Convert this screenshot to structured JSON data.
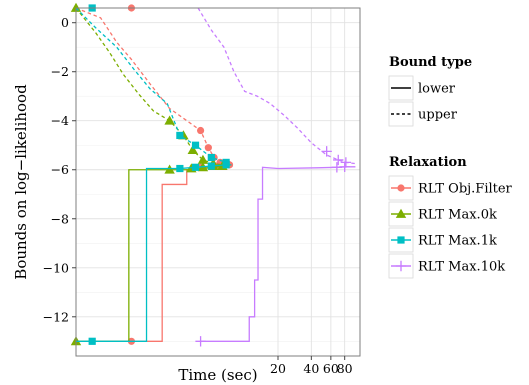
{
  "chart_data": {
    "type": "line",
    "title": "",
    "xlabel": "Time (sec)",
    "ylabel": "Bounds on log−likelihood",
    "x_scale": "log",
    "xlim": [
      0.3,
      110
    ],
    "ylim": [
      -13.6,
      0.6
    ],
    "x_ticks": [
      {
        "value": 20,
        "label": "20"
      },
      {
        "value": 40,
        "label": "40"
      },
      {
        "value": 60,
        "label": "60"
      },
      {
        "value": 80,
        "label": "80"
      }
    ],
    "y_ticks": [
      {
        "value": 0,
        "label": "0"
      },
      {
        "value": -2,
        "label": "−2"
      },
      {
        "value": -4,
        "label": "−4"
      },
      {
        "value": -6,
        "label": "−6"
      },
      {
        "value": -8,
        "label": "−8"
      },
      {
        "value": -10,
        "label": "−10"
      },
      {
        "value": -12,
        "label": "−12"
      }
    ],
    "grid": true,
    "legend_position": "right",
    "legend": {
      "bound_title": "Bound type",
      "bound_items": [
        {
          "label": "lower",
          "dash": "solid"
        },
        {
          "label": "upper",
          "dash": "dashed"
        }
      ],
      "relaxation_title": "Relaxation"
    },
    "series": [
      {
        "name": "RLT Obj.Filter",
        "color": "#F8766D",
        "shape": "circle",
        "lower": [
          [
            0.3,
            -13
          ],
          [
            1.8,
            -13
          ],
          [
            1.8,
            -6.6
          ],
          [
            3.0,
            -6.6
          ],
          [
            3.0,
            -6.0
          ],
          [
            4.0,
            -5.9
          ],
          [
            5.4,
            -5.85
          ],
          [
            6.5,
            -5.8
          ],
          [
            7.6,
            -5.8
          ]
        ],
        "lower_markers": [
          [
            0.95,
            -13
          ],
          [
            4.0,
            -5.9
          ],
          [
            5.5,
            -5.85
          ],
          [
            6.5,
            -5.8
          ],
          [
            7.3,
            -5.8
          ]
        ],
        "upper": [
          [
            0.3,
            0.6
          ],
          [
            0.5,
            0.2
          ],
          [
            0.7,
            -0.8
          ],
          [
            0.95,
            -1.5
          ],
          [
            1.4,
            -2.5
          ],
          [
            2.1,
            -3.5
          ],
          [
            2.8,
            -3.9
          ],
          [
            4.0,
            -4.4
          ],
          [
            4.7,
            -5.1
          ],
          [
            5.3,
            -5.5
          ],
          [
            6.0,
            -5.7
          ],
          [
            7.0,
            -5.75
          ],
          [
            7.6,
            -5.75
          ]
        ],
        "upper_markers": [
          [
            0.95,
            0.6
          ],
          [
            4.0,
            -4.4
          ],
          [
            4.7,
            -5.1
          ],
          [
            5.3,
            -5.5
          ],
          [
            6.0,
            -5.7
          ],
          [
            7.0,
            -5.75
          ]
        ]
      },
      {
        "name": "RLT Max.0k",
        "color": "#7CAE00",
        "shape": "triangle",
        "lower": [
          [
            0.3,
            -13
          ],
          [
            0.9,
            -13
          ],
          [
            0.9,
            -6.0
          ],
          [
            3.4,
            -6.0
          ],
          [
            4.2,
            -5.95
          ],
          [
            5.2,
            -5.9
          ],
          [
            6.3,
            -5.85
          ],
          [
            7.4,
            -5.8
          ]
        ],
        "lower_markers": [
          [
            0.3,
            -13
          ],
          [
            2.1,
            -6.0
          ],
          [
            3.3,
            -5.95
          ],
          [
            4.2,
            -5.9
          ],
          [
            5.2,
            -5.85
          ],
          [
            6.3,
            -5.85
          ]
        ],
        "upper": [
          [
            0.3,
            0.6
          ],
          [
            0.45,
            -0.4
          ],
          [
            0.6,
            -1.2
          ],
          [
            0.8,
            -2.1
          ],
          [
            1.1,
            -2.9
          ],
          [
            1.5,
            -3.6
          ],
          [
            2.1,
            -4.0
          ],
          [
            2.8,
            -4.6
          ],
          [
            3.4,
            -5.2
          ],
          [
            4.2,
            -5.6
          ],
          [
            5.2,
            -5.75
          ],
          [
            6.3,
            -5.8
          ],
          [
            7.4,
            -5.8
          ]
        ],
        "upper_markers": [
          [
            0.3,
            0.6
          ],
          [
            2.1,
            -4.0
          ],
          [
            2.8,
            -4.6
          ],
          [
            3.4,
            -5.2
          ],
          [
            4.2,
            -5.6
          ],
          [
            5.2,
            -5.75
          ]
        ]
      },
      {
        "name": "RLT Max.1k",
        "color": "#00BFC4",
        "shape": "square",
        "lower": [
          [
            0.3,
            -13
          ],
          [
            1.3,
            -13
          ],
          [
            1.3,
            -5.95
          ],
          [
            2.6,
            -5.95
          ],
          [
            3.6,
            -5.9
          ],
          [
            5.0,
            -5.85
          ],
          [
            6.8,
            -5.8
          ],
          [
            7.6,
            -5.8
          ]
        ],
        "lower_markers": [
          [
            0.42,
            -13
          ],
          [
            2.6,
            -5.95
          ],
          [
            3.6,
            -5.9
          ],
          [
            5.0,
            -5.85
          ],
          [
            6.8,
            -5.8
          ]
        ],
        "upper": [
          [
            0.3,
            0.6
          ],
          [
            0.45,
            -0.2
          ],
          [
            0.7,
            -1.0
          ],
          [
            1.0,
            -1.9
          ],
          [
            1.4,
            -2.7
          ],
          [
            2.0,
            -3.3
          ],
          [
            2.6,
            -4.6
          ],
          [
            3.6,
            -5.0
          ],
          [
            5.0,
            -5.5
          ],
          [
            6.8,
            -5.7
          ],
          [
            7.6,
            -5.75
          ]
        ],
        "upper_markers": [
          [
            0.42,
            0.6
          ],
          [
            2.6,
            -4.6
          ],
          [
            3.6,
            -5.0
          ],
          [
            5.0,
            -5.5
          ],
          [
            6.8,
            -5.7
          ]
        ]
      },
      {
        "name": "RLT Max.10k",
        "color": "#C77CFF",
        "shape": "plus",
        "lower": [
          [
            4.0,
            -13
          ],
          [
            11.0,
            -13
          ],
          [
            11.0,
            -12.0
          ],
          [
            12.3,
            -12.0
          ],
          [
            12.3,
            -10.5
          ],
          [
            13.2,
            -10.5
          ],
          [
            13.2,
            -7.2
          ],
          [
            14.5,
            -7.2
          ],
          [
            14.5,
            -5.9
          ],
          [
            20,
            -5.95
          ],
          [
            45,
            -5.92
          ],
          [
            68,
            -5.9
          ],
          [
            85,
            -5.88
          ],
          [
            100,
            -5.88
          ]
        ],
        "lower_markers": [
          [
            4.0,
            -13
          ],
          [
            68,
            -5.9
          ],
          [
            80,
            -5.88
          ]
        ],
        "upper": [
          [
            3.8,
            0.6
          ],
          [
            5.0,
            -0.3
          ],
          [
            6.5,
            -1.0
          ],
          [
            8.0,
            -2.0
          ],
          [
            10.0,
            -2.8
          ],
          [
            13.0,
            -3.0
          ],
          [
            17.0,
            -3.3
          ],
          [
            23.0,
            -3.8
          ],
          [
            30.0,
            -4.3
          ],
          [
            40.0,
            -4.9
          ],
          [
            55.0,
            -5.4
          ],
          [
            70.0,
            -5.6
          ],
          [
            82.0,
            -5.7
          ],
          [
            100.0,
            -5.75
          ]
        ],
        "upper_markers": [
          [
            55,
            -5.25
          ],
          [
            70,
            -5.6
          ],
          [
            82,
            -5.7
          ]
        ]
      }
    ]
  }
}
